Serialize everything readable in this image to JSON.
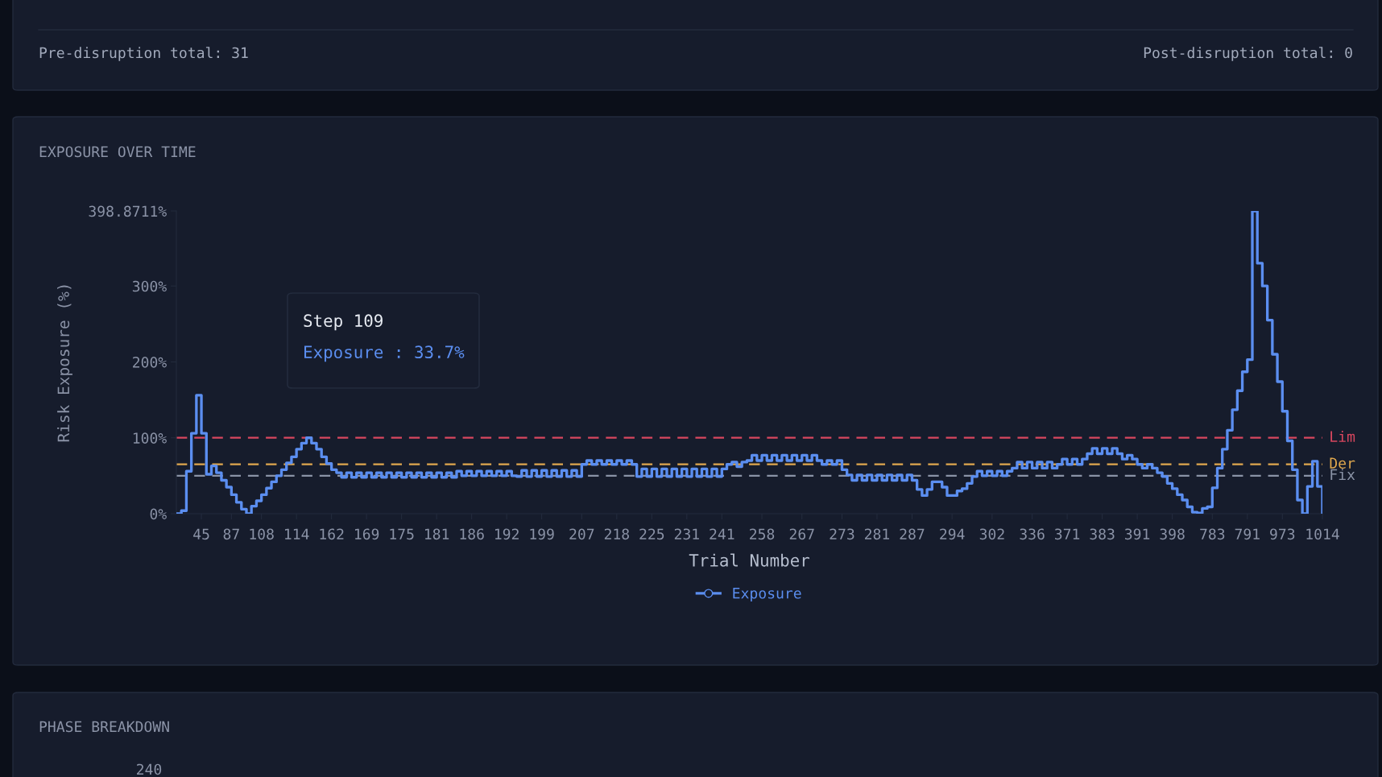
{
  "chart_data": [
    {
      "type": "other",
      "annotations": [
        "Pre-disruption total: 31",
        "Post-disruption total: 0"
      ]
    },
    {
      "type": "step",
      "title": "EXPOSURE OVER TIME",
      "xlabel": "Trial Number",
      "ylabel": "Risk Exposure (%)",
      "categories": [
        null,
        null,
        null,
        null,
        null,
        "45",
        null,
        null,
        null,
        null,
        null,
        "87",
        null,
        null,
        null,
        null,
        null,
        "108",
        null,
        null,
        null,
        null,
        null,
        null,
        "114",
        null,
        null,
        null,
        null,
        null,
        null,
        "162",
        null,
        null,
        null,
        null,
        null,
        null,
        "169",
        null,
        null,
        null,
        null,
        null,
        null,
        "175",
        null,
        null,
        null,
        null,
        null,
        null,
        "181",
        null,
        null,
        null,
        null,
        null,
        null,
        "186",
        null,
        null,
        null,
        null,
        null,
        null,
        "192",
        null,
        null,
        null,
        null,
        null,
        null,
        "199",
        null,
        null,
        null,
        null,
        null,
        null,
        null,
        "207",
        null,
        null,
        null,
        null,
        null,
        null,
        "218",
        null,
        null,
        null,
        null,
        null,
        null,
        "225",
        null,
        null,
        null,
        null,
        null,
        null,
        "231",
        null,
        null,
        null,
        null,
        null,
        null,
        "241",
        null,
        null,
        null,
        null,
        null,
        null,
        null,
        "258",
        null,
        null,
        null,
        null,
        null,
        null,
        null,
        "267",
        null,
        null,
        null,
        null,
        null,
        null,
        null,
        "273",
        null,
        null,
        null,
        null,
        null,
        null,
        "281",
        null,
        null,
        null,
        null,
        null,
        null,
        "287",
        null,
        null,
        null,
        null,
        null,
        null,
        null,
        "294",
        null,
        null,
        null,
        null,
        null,
        null,
        null,
        "302",
        null,
        null,
        null,
        null,
        null,
        null,
        null,
        "336",
        null,
        null,
        null,
        null,
        null,
        null,
        "371",
        null,
        null,
        null,
        null,
        null,
        null,
        "383",
        null,
        null,
        null,
        null,
        null,
        null,
        "391",
        null,
        null,
        null,
        null,
        null,
        null,
        "398",
        null,
        null,
        null,
        null,
        null,
        null,
        null,
        "783",
        null,
        null,
        null,
        null,
        null,
        null,
        "791",
        null,
        null,
        null,
        null,
        null,
        null,
        "973",
        null,
        null,
        null,
        null,
        null,
        null,
        null,
        "1014"
      ],
      "series": [
        {
          "name": "Exposure",
          "color": "#5b8ef0",
          "values": [
            0,
            4,
            56,
            106,
            156,
            106,
            52,
            63,
            54,
            44,
            35,
            25,
            15,
            6,
            0,
            10,
            17,
            25,
            33.7,
            42,
            50,
            58,
            67,
            75,
            85,
            93,
            100,
            93,
            85,
            75,
            66,
            58,
            54,
            48,
            54,
            48,
            54,
            48,
            54,
            48,
            54,
            48,
            54,
            48,
            54,
            48,
            54,
            48,
            54,
            48,
            54,
            48,
            54,
            48,
            54,
            48,
            56,
            50,
            56,
            50,
            56,
            50,
            56,
            50,
            56,
            50,
            56,
            50,
            49,
            57,
            49,
            57,
            49,
            57,
            49,
            57,
            49,
            57,
            49,
            57,
            49,
            65,
            70,
            65,
            70,
            65,
            70,
            65,
            70,
            65,
            70,
            65,
            49,
            59,
            49,
            59,
            49,
            59,
            49,
            59,
            49,
            59,
            49,
            59,
            49,
            59,
            49,
            59,
            49,
            59,
            65,
            68,
            62,
            68,
            70,
            77,
            70,
            77,
            70,
            77,
            70,
            77,
            70,
            77,
            70,
            77,
            70,
            77,
            70,
            65,
            70,
            65,
            70,
            58,
            51,
            44,
            51,
            44,
            51,
            44,
            51,
            44,
            51,
            44,
            51,
            44,
            51,
            44,
            32,
            24,
            32,
            42,
            42,
            35,
            24,
            24,
            30,
            33,
            40,
            49,
            56,
            50,
            56,
            50,
            56,
            50,
            56,
            60,
            68,
            60,
            68,
            60,
            68,
            60,
            68,
            60,
            65,
            72,
            65,
            72,
            65,
            72,
            79,
            86,
            79,
            86,
            79,
            86,
            79,
            72,
            77,
            72,
            65,
            60,
            65,
            60,
            54,
            49,
            40,
            33,
            25,
            18,
            9,
            2,
            1,
            7,
            9,
            34,
            60,
            85,
            110,
            137,
            162,
            187,
            203,
            398.8711,
            330,
            300,
            255,
            210,
            174,
            135,
            96,
            58,
            18,
            0,
            36,
            69,
            36,
            0
          ]
        }
      ],
      "ylim": [
        0,
        398.8711
      ],
      "yticks": [
        {
          "value": 0,
          "label": "0%"
        },
        {
          "value": 100,
          "label": "100%"
        },
        {
          "value": 200,
          "label": "200%"
        },
        {
          "value": 300,
          "label": "300%"
        },
        {
          "value": 398.8711,
          "label": "398.8711%"
        }
      ],
      "ref_lines": [
        {
          "axis": "y",
          "value": 100,
          "label": "Lim",
          "color": "#d9475f",
          "line_style": "dashed"
        },
        {
          "axis": "y",
          "value": 65,
          "label": "Der",
          "color": "#e0a84e",
          "line_style": "dashed"
        },
        {
          "axis": "y",
          "value": 50,
          "label": "Fix",
          "color": "#8a93a6",
          "line_style": "dashed"
        }
      ],
      "annotations": [
        "Step 109",
        "Exposure : 33.7%"
      ],
      "legend": "bottom",
      "grid": false,
      "marker": "none",
      "line_style": "solid"
    },
    {
      "type": "other",
      "title": "PHASE BREAKDOWN",
      "annotations": [
        "240"
      ]
    }
  ]
}
